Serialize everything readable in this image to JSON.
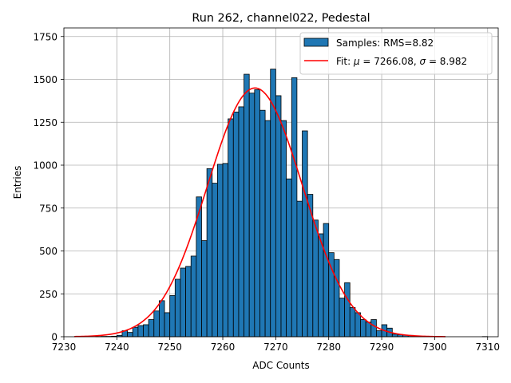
{
  "chart_data": {
    "type": "bar",
    "title": "Run 262, channel022, Pedestal",
    "xlabel": "ADC Counts",
    "ylabel": "Entries",
    "xlim": [
      7230,
      7312
    ],
    "ylim": [
      0,
      1800
    ],
    "x_ticks": [
      7230,
      7240,
      7250,
      7260,
      7270,
      7280,
      7290,
      7300,
      7310
    ],
    "y_ticks": [
      0,
      250,
      500,
      750,
      1000,
      1250,
      1500,
      1750
    ],
    "grid": true,
    "legend_position": "top-right",
    "colors": {
      "bar_fill": "#1f77b4",
      "bar_edge": "#000000",
      "fit_line": "#ff0000",
      "grid": "#b0b0b0"
    },
    "series": [
      {
        "name": "Samples: RMS=8.82",
        "kind": "histogram",
        "bin_width": 1,
        "bins": [
          {
            "x": 7232,
            "y": 1
          },
          {
            "x": 7233,
            "y": 0
          },
          {
            "x": 7234,
            "y": 0
          },
          {
            "x": 7235,
            "y": 0
          },
          {
            "x": 7236,
            "y": 1
          },
          {
            "x": 7237,
            "y": 2
          },
          {
            "x": 7238,
            "y": 2
          },
          {
            "x": 7239,
            "y": 3
          },
          {
            "x": 7240,
            "y": 8
          },
          {
            "x": 7241,
            "y": 35
          },
          {
            "x": 7242,
            "y": 25
          },
          {
            "x": 7243,
            "y": 55
          },
          {
            "x": 7244,
            "y": 65
          },
          {
            "x": 7245,
            "y": 70
          },
          {
            "x": 7246,
            "y": 100
          },
          {
            "x": 7247,
            "y": 150
          },
          {
            "x": 7248,
            "y": 210
          },
          {
            "x": 7249,
            "y": 140
          },
          {
            "x": 7250,
            "y": 240
          },
          {
            "x": 7251,
            "y": 335
          },
          {
            "x": 7252,
            "y": 400
          },
          {
            "x": 7253,
            "y": 410
          },
          {
            "x": 7254,
            "y": 470
          },
          {
            "x": 7255,
            "y": 815
          },
          {
            "x": 7256,
            "y": 560
          },
          {
            "x": 7257,
            "y": 980
          },
          {
            "x": 7258,
            "y": 895
          },
          {
            "x": 7259,
            "y": 1005
          },
          {
            "x": 7260,
            "y": 1010
          },
          {
            "x": 7261,
            "y": 1270
          },
          {
            "x": 7262,
            "y": 1310
          },
          {
            "x": 7263,
            "y": 1340
          },
          {
            "x": 7264,
            "y": 1530
          },
          {
            "x": 7265,
            "y": 1420
          },
          {
            "x": 7266,
            "y": 1440
          },
          {
            "x": 7267,
            "y": 1320
          },
          {
            "x": 7268,
            "y": 1260
          },
          {
            "x": 7269,
            "y": 1560
          },
          {
            "x": 7270,
            "y": 1405
          },
          {
            "x": 7271,
            "y": 1260
          },
          {
            "x": 7272,
            "y": 920
          },
          {
            "x": 7273,
            "y": 1510
          },
          {
            "x": 7274,
            "y": 790
          },
          {
            "x": 7275,
            "y": 1200
          },
          {
            "x": 7276,
            "y": 830
          },
          {
            "x": 7277,
            "y": 680
          },
          {
            "x": 7278,
            "y": 600
          },
          {
            "x": 7279,
            "y": 660
          },
          {
            "x": 7280,
            "y": 490
          },
          {
            "x": 7281,
            "y": 450
          },
          {
            "x": 7282,
            "y": 225
          },
          {
            "x": 7283,
            "y": 315
          },
          {
            "x": 7284,
            "y": 170
          },
          {
            "x": 7285,
            "y": 140
          },
          {
            "x": 7286,
            "y": 100
          },
          {
            "x": 7287,
            "y": 85
          },
          {
            "x": 7288,
            "y": 100
          },
          {
            "x": 7289,
            "y": 35
          },
          {
            "x": 7290,
            "y": 70
          },
          {
            "x": 7291,
            "y": 50
          },
          {
            "x": 7292,
            "y": 15
          },
          {
            "x": 7293,
            "y": 12
          },
          {
            "x": 7294,
            "y": 10
          },
          {
            "x": 7295,
            "y": 8
          },
          {
            "x": 7296,
            "y": 4
          },
          {
            "x": 7297,
            "y": 2
          },
          {
            "x": 7298,
            "y": 1
          },
          {
            "x": 7299,
            "y": 1
          },
          {
            "x": 7300,
            "y": 0
          },
          {
            "x": 7301,
            "y": 1
          },
          {
            "x": 7302,
            "y": 0
          },
          {
            "x": 7303,
            "y": 0
          },
          {
            "x": 7304,
            "y": 0
          },
          {
            "x": 7305,
            "y": 0
          },
          {
            "x": 7306,
            "y": 0
          },
          {
            "x": 7307,
            "y": 0
          },
          {
            "x": 7308,
            "y": 0
          },
          {
            "x": 7309,
            "y": 1
          }
        ]
      },
      {
        "name": "Fit: μ = 7266.08, σ = 8.982",
        "kind": "gaussian",
        "mu": 7266.08,
        "sigma": 8.982,
        "amplitude": 1450,
        "x_range": [
          7232,
          7302
        ]
      }
    ],
    "legend": {
      "samples_label": "Samples: RMS=8.82",
      "fit_label_prefix": "Fit: ",
      "fit_mu_symbol": "μ",
      "fit_mu_text": " = 7266.08, ",
      "fit_sigma_symbol": "σ",
      "fit_sigma_text": " = 8.982"
    }
  }
}
